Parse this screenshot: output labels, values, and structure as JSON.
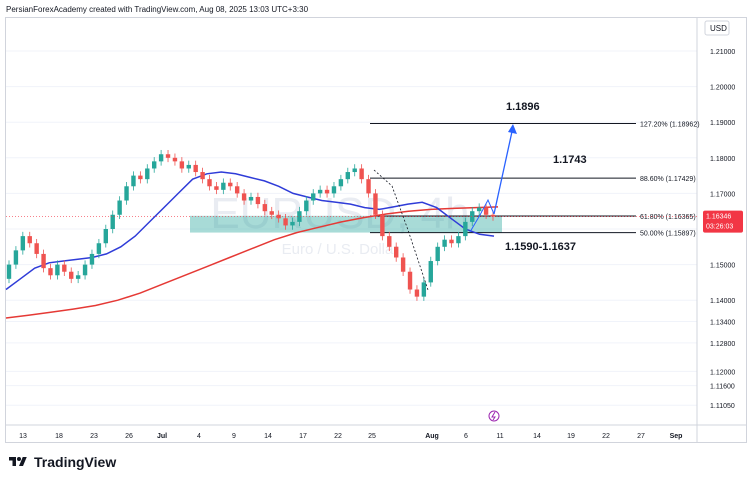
{
  "header": {
    "attribution": "PersianForexAcademy created with TradingView.com, Aug 08, 2025 13:03 UTC+3:30"
  },
  "footer": {
    "brand": "TradingView"
  },
  "chart_data": {
    "type": "candlestick",
    "symbol_watermark": "EURUSD, 4h",
    "watermark_subtitle": "Euro / U.S. Dollar",
    "currency_label": "USD",
    "y_ticks": [
      1.21,
      1.2,
      1.19,
      1.18,
      1.17,
      1.16,
      1.15,
      1.14,
      1.13,
      1.12,
      1.11
    ],
    "y_tick_labels": [
      "1.21000",
      "1.20000",
      "1.19000",
      "1.18000",
      "1.17000",
      "1.16000",
      "1.15000",
      "1.14000",
      "1.13400",
      "1.12800",
      "1.12000",
      "1.11600",
      "1.11050"
    ],
    "y_tick_values": [
      1.21,
      1.2,
      1.19,
      1.18,
      1.17,
      1.16,
      1.15,
      1.14,
      1.134,
      1.128,
      1.12,
      1.116,
      1.1105
    ],
    "x_tick_labels": [
      "13",
      "18",
      "23",
      "26",
      "Jul",
      "4",
      "9",
      "14",
      "17",
      "22",
      "25",
      "Aug",
      "6",
      "11",
      "14",
      "19",
      "22",
      "27",
      "Sep"
    ],
    "last_price": {
      "value": "1.16346",
      "countdown": "03:26:03",
      "color": "#f23645"
    },
    "fib_levels": [
      {
        "label": "127.20% (1.18962)",
        "value": 1.18962
      },
      {
        "label": "88.60% (1.17429)",
        "value": 1.17429
      },
      {
        "label": "61.80% (1.16365)",
        "value": 1.16365
      },
      {
        "label": "50.00% (1.15897)",
        "value": 1.15897
      }
    ],
    "annotations": [
      "1.1896",
      "1.1743",
      "1.1590-1.1637"
    ],
    "zone": {
      "from": 1.159,
      "to": 1.1637,
      "color": "#26a69a"
    },
    "candle_closes": [
      1.15,
      1.154,
      1.158,
      1.156,
      1.153,
      1.149,
      1.147,
      1.15,
      1.148,
      1.146,
      1.147,
      1.15,
      1.153,
      1.156,
      1.16,
      1.164,
      1.168,
      1.172,
      1.175,
      1.174,
      1.177,
      1.179,
      1.181,
      1.18,
      1.179,
      1.177,
      1.178,
      1.176,
      1.174,
      1.172,
      1.171,
      1.173,
      1.172,
      1.17,
      1.168,
      1.169,
      1.167,
      1.165,
      1.164,
      1.163,
      1.161,
      1.162,
      1.165,
      1.168,
      1.17,
      1.171,
      1.17,
      1.172,
      1.174,
      1.176,
      1.177,
      1.174,
      1.17,
      1.164,
      1.158,
      1.155,
      1.152,
      1.148,
      1.143,
      1.141,
      1.145,
      1.151,
      1.155,
      1.157,
      1.156,
      1.158,
      1.162,
      1.165,
      1.166,
      1.164,
      1.1635
    ],
    "ma_blue": [
      1.143,
      1.146,
      1.149,
      1.1505,
      1.151,
      1.1515,
      1.152,
      1.153,
      1.155,
      1.158,
      1.162,
      1.166,
      1.17,
      1.174,
      1.1755,
      1.176,
      1.1755,
      1.1745,
      1.1735,
      1.172,
      1.17,
      1.169,
      1.168,
      1.1675,
      1.167,
      1.166,
      1.1655,
      1.1662,
      1.167,
      1.1675,
      1.166,
      1.163,
      1.16,
      1.1585,
      1.158
    ],
    "ma_red": [
      1.135,
      1.1358,
      1.1366,
      1.1375,
      1.1385,
      1.14,
      1.142,
      1.1445,
      1.147,
      1.1495,
      1.152,
      1.1545,
      1.157,
      1.159,
      1.1605,
      1.162,
      1.1632,
      1.1642,
      1.165,
      1.1655,
      1.1658,
      1.166,
      1.1662
    ],
    "projection_arrow_target": 1.1896
  }
}
